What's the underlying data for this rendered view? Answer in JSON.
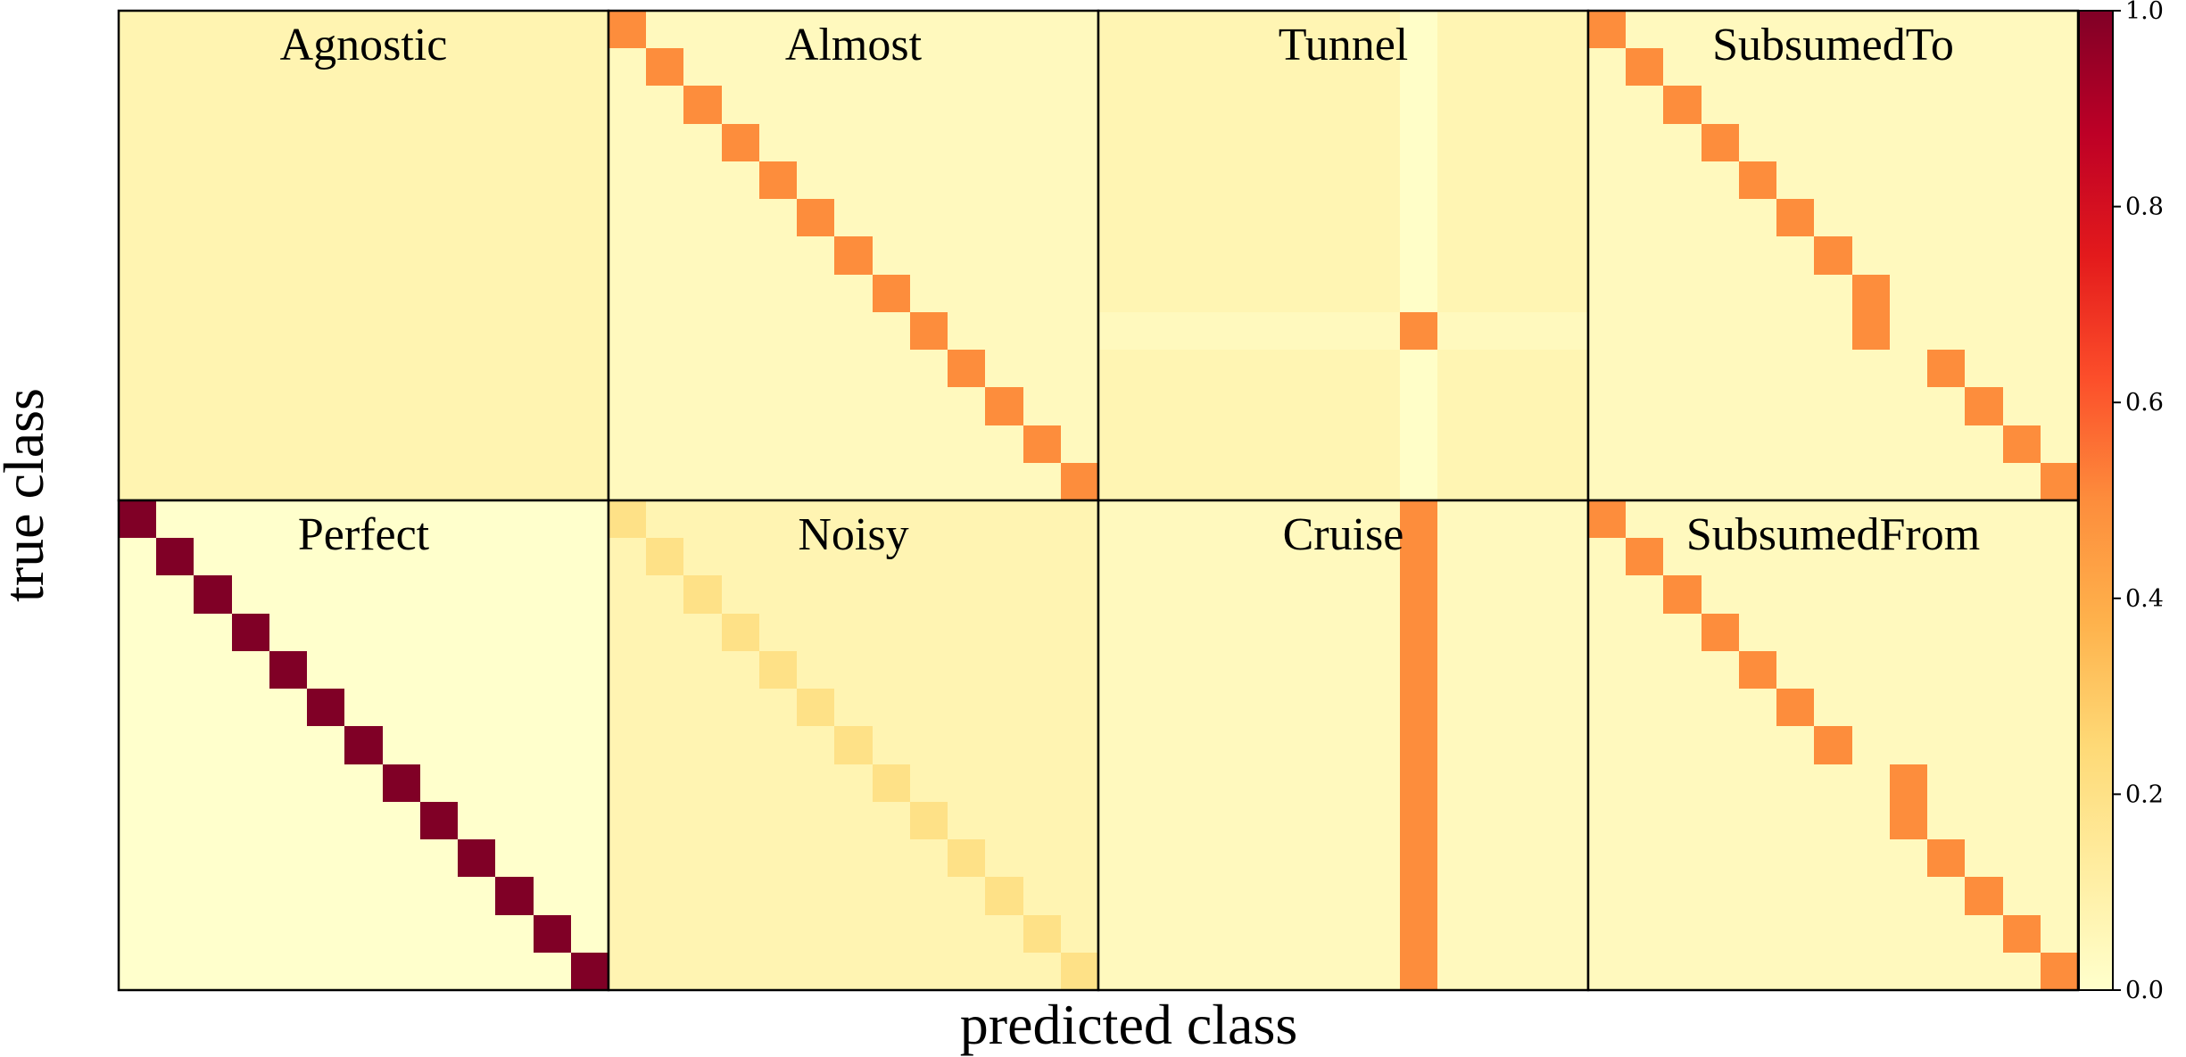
{
  "chart_data": {
    "type": "heatmap",
    "xlabel": "predicted class",
    "ylabel": "true class",
    "grid_size": 13,
    "layout": "2 rows x 4 columns",
    "colormap": "YlOrRd",
    "colorbar": {
      "range": [
        0.0,
        1.0
      ],
      "ticks": [
        "0.0",
        "0.2",
        "0.4",
        "0.6",
        "0.8",
        "1.0"
      ]
    },
    "panels": [
      {
        "title": "Agnostic",
        "base": 0.077,
        "cells": []
      },
      {
        "title": "Almost",
        "base": 0.04,
        "cells": [
          [
            0,
            0,
            0.5
          ],
          [
            1,
            1,
            0.5
          ],
          [
            2,
            2,
            0.5
          ],
          [
            3,
            3,
            0.5
          ],
          [
            4,
            4,
            0.5
          ],
          [
            5,
            5,
            0.5
          ],
          [
            6,
            6,
            0.5
          ],
          [
            7,
            7,
            0.5
          ],
          [
            8,
            8,
            0.5
          ],
          [
            9,
            9,
            0.5
          ],
          [
            10,
            10,
            0.5
          ],
          [
            11,
            11,
            0.5
          ],
          [
            12,
            12,
            0.5
          ]
        ]
      },
      {
        "title": "Tunnel",
        "base": 0.07,
        "col_override": [
          [
            8,
            0.01
          ]
        ],
        "row_override": [
          [
            8,
            0.04
          ]
        ],
        "cells": [
          [
            8,
            8,
            0.5
          ]
        ]
      },
      {
        "title": "SubsumedTo",
        "base": 0.04,
        "cells": [
          [
            0,
            0,
            0.5
          ],
          [
            1,
            1,
            0.5
          ],
          [
            2,
            2,
            0.5
          ],
          [
            3,
            3,
            0.5
          ],
          [
            4,
            4,
            0.5
          ],
          [
            5,
            5,
            0.5
          ],
          [
            6,
            6,
            0.5
          ],
          [
            7,
            7,
            0.5
          ],
          [
            8,
            7,
            0.5
          ],
          [
            9,
            9,
            0.5
          ],
          [
            10,
            10,
            0.5
          ],
          [
            11,
            11,
            0.5
          ],
          [
            12,
            12,
            0.5
          ]
        ]
      },
      {
        "title": "Perfect",
        "base": 0.0,
        "cells": [
          [
            0,
            0,
            1.0
          ],
          [
            1,
            1,
            1.0
          ],
          [
            2,
            2,
            1.0
          ],
          [
            3,
            3,
            1.0
          ],
          [
            4,
            4,
            1.0
          ],
          [
            5,
            5,
            1.0
          ],
          [
            6,
            6,
            1.0
          ],
          [
            7,
            7,
            1.0
          ],
          [
            8,
            8,
            1.0
          ],
          [
            9,
            9,
            1.0
          ],
          [
            10,
            10,
            1.0
          ],
          [
            11,
            11,
            1.0
          ],
          [
            12,
            12,
            1.0
          ]
        ]
      },
      {
        "title": "Noisy",
        "base": 0.075,
        "cells": [
          [
            0,
            0,
            0.2
          ],
          [
            1,
            1,
            0.2
          ],
          [
            2,
            2,
            0.2
          ],
          [
            3,
            3,
            0.2
          ],
          [
            4,
            4,
            0.2
          ],
          [
            5,
            5,
            0.2
          ],
          [
            6,
            6,
            0.2
          ],
          [
            7,
            7,
            0.2
          ],
          [
            8,
            8,
            0.2
          ],
          [
            9,
            9,
            0.2
          ],
          [
            10,
            10,
            0.2
          ],
          [
            11,
            11,
            0.2
          ],
          [
            12,
            12,
            0.2
          ]
        ]
      },
      {
        "title": "Cruise",
        "base": 0.04,
        "col_override": [
          [
            8,
            0.5
          ]
        ],
        "cells": []
      },
      {
        "title": "SubsumedFrom",
        "base": 0.04,
        "cells": [
          [
            0,
            0,
            0.5
          ],
          [
            1,
            1,
            0.5
          ],
          [
            2,
            2,
            0.5
          ],
          [
            3,
            3,
            0.5
          ],
          [
            4,
            4,
            0.5
          ],
          [
            5,
            5,
            0.5
          ],
          [
            6,
            6,
            0.5
          ],
          [
            7,
            8,
            0.5
          ],
          [
            8,
            8,
            0.5
          ],
          [
            9,
            9,
            0.5
          ],
          [
            10,
            10,
            0.5
          ],
          [
            11,
            11,
            0.5
          ],
          [
            12,
            12,
            0.5
          ]
        ]
      }
    ]
  }
}
